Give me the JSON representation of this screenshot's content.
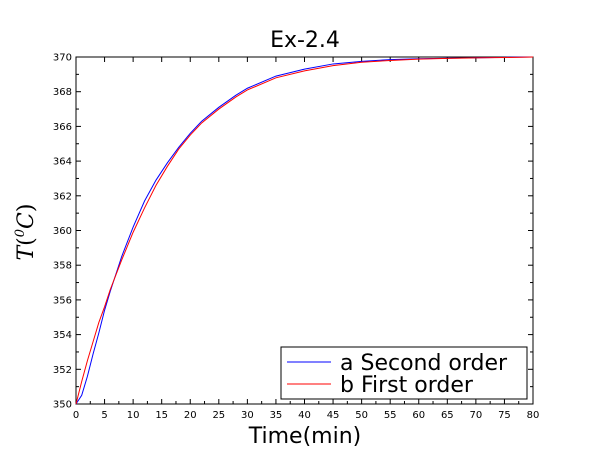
{
  "chart_data": {
    "type": "line",
    "title": "Ex-2.4",
    "xlabel": "Time(min)",
    "ylabel": "T(0C)",
    "xlim": [
      0,
      80
    ],
    "ylim": [
      350,
      370
    ],
    "x_ticks": [
      0,
      5,
      10,
      15,
      20,
      25,
      30,
      35,
      40,
      45,
      50,
      55,
      60,
      65,
      70,
      75,
      80
    ],
    "y_ticks": [
      350,
      352,
      354,
      356,
      358,
      360,
      362,
      364,
      366,
      368,
      370
    ],
    "grid": false,
    "legend_position": "bottom-right",
    "x": [
      0,
      1,
      2,
      3,
      4,
      5,
      6,
      8,
      10,
      12,
      14,
      16,
      18,
      20,
      22,
      25,
      28,
      30,
      35,
      40,
      45,
      50,
      55,
      60,
      65,
      70,
      75,
      80
    ],
    "series": [
      {
        "name": "a Second order",
        "color": "#0000ff",
        "values": [
          350.0,
          350.5,
          351.6,
          352.9,
          354.1,
          355.4,
          356.5,
          358.5,
          360.2,
          361.7,
          362.9,
          363.9,
          364.8,
          365.6,
          366.3,
          367.1,
          367.8,
          368.2,
          368.9,
          369.3,
          369.6,
          369.75,
          369.85,
          369.9,
          369.93,
          369.96,
          369.98,
          370.0
        ]
      },
      {
        "name": "b First order",
        "color": "#ff0000",
        "values": [
          350.0,
          351.3,
          352.5,
          353.6,
          354.7,
          355.6,
          356.6,
          358.3,
          359.9,
          361.3,
          362.6,
          363.7,
          364.7,
          365.5,
          366.2,
          367.0,
          367.7,
          368.1,
          368.8,
          369.2,
          369.5,
          369.7,
          369.8,
          369.88,
          369.92,
          369.95,
          369.97,
          370.0
        ]
      }
    ]
  }
}
